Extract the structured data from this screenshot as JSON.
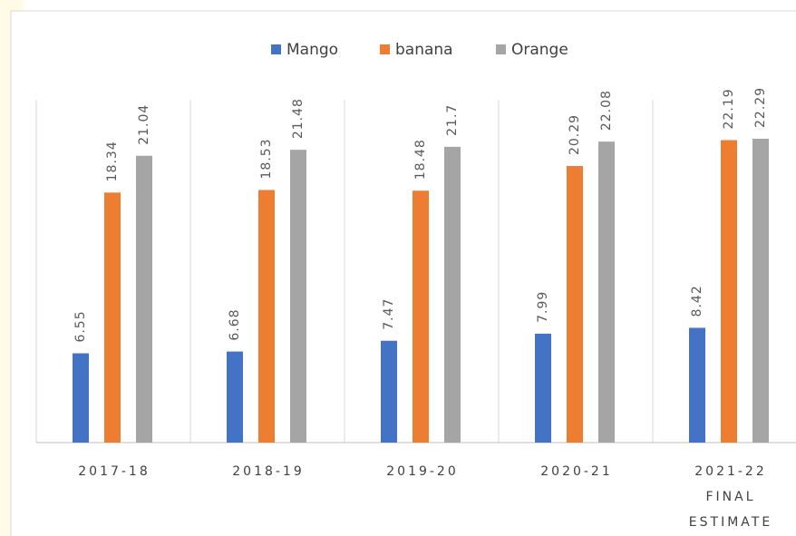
{
  "chart_data": {
    "type": "bar",
    "categories": [
      "2017-18",
      "2018-19",
      "2019-20",
      "2020-21",
      "2021-22 FINAL ESTIMATE"
    ],
    "series": [
      {
        "name": "Mango",
        "color": "#4472c4",
        "values": [
          6.55,
          6.68,
          7.47,
          7.99,
          8.42
        ]
      },
      {
        "name": "banana",
        "color": "#ed7d31",
        "values": [
          18.34,
          18.53,
          18.48,
          20.29,
          22.19
        ]
      },
      {
        "name": "Orange",
        "color": "#a5a5a5",
        "values": [
          21.04,
          21.48,
          21.7,
          22.08,
          22.29
        ]
      }
    ],
    "legend": "top"
  }
}
